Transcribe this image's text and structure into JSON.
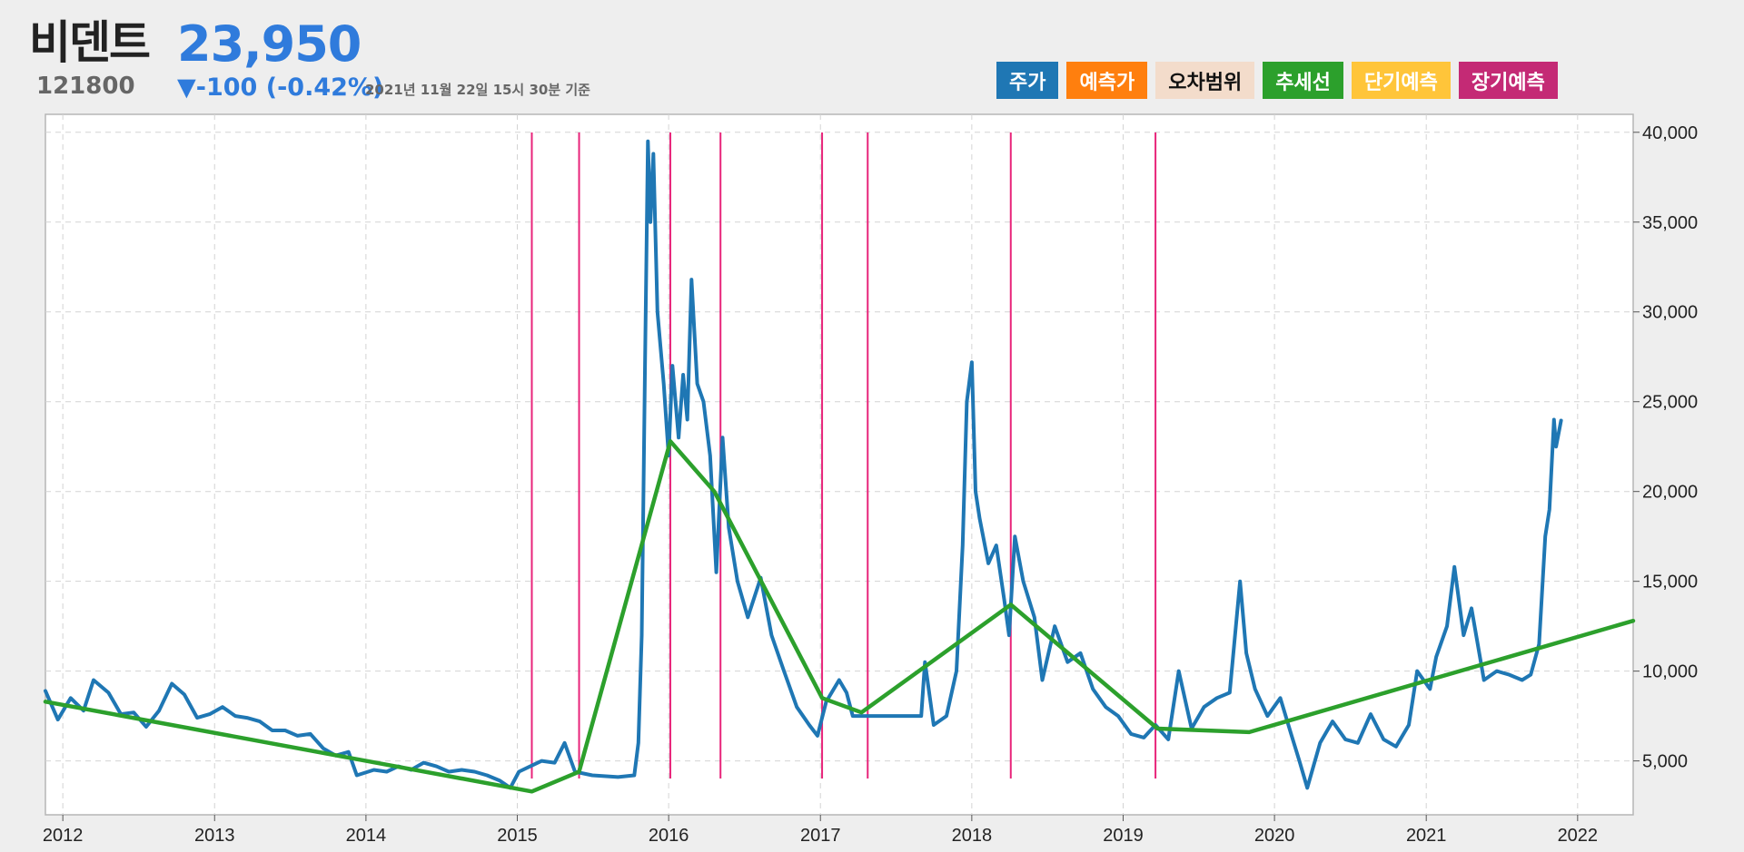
{
  "header": {
    "name": "비덴트",
    "price": "23,950",
    "code": "121800",
    "change": "▼-100 (-0.42%)",
    "timestamp": "2021년 11월 22일 15시 30분 기준"
  },
  "legend": [
    {
      "label": "주가",
      "color": "#1f77b4",
      "text_color": "#ffffff"
    },
    {
      "label": "예측가",
      "color": "#ff7f0e",
      "text_color": "#ffffff"
    },
    {
      "label": "오차범위",
      "color": "#f3dccb",
      "text_color": "#111111"
    },
    {
      "label": "추세선",
      "color": "#2ca02c",
      "text_color": "#ffffff"
    },
    {
      "label": "단기예측",
      "color": "#ffc53a",
      "text_color": "#ffffff"
    },
    {
      "label": "장기예측",
      "color": "#c42a75",
      "text_color": "#ffffff"
    }
  ],
  "chart_data": {
    "type": "line",
    "x_type": "date",
    "xlim": [
      "2011-11-20",
      "2022-05-15"
    ],
    "ylim": [
      2000,
      41000
    ],
    "x_ticks": [
      {
        "value": "2012-01-01",
        "label": "2012"
      },
      {
        "value": "2013-01-01",
        "label": "2013"
      },
      {
        "value": "2014-01-01",
        "label": "2014"
      },
      {
        "value": "2015-01-01",
        "label": "2015"
      },
      {
        "value": "2016-01-01",
        "label": "2016"
      },
      {
        "value": "2017-01-01",
        "label": "2017"
      },
      {
        "value": "2018-01-01",
        "label": "2018"
      },
      {
        "value": "2019-01-01",
        "label": "2019"
      },
      {
        "value": "2020-01-01",
        "label": "2020"
      },
      {
        "value": "2021-01-01",
        "label": "2021"
      },
      {
        "value": "2022-01-01",
        "label": "2022"
      }
    ],
    "y_ticks": [
      {
        "value": 5000,
        "label": "5,000"
      },
      {
        "value": 10000,
        "label": "10,000"
      },
      {
        "value": 15000,
        "label": "15,000"
      },
      {
        "value": 20000,
        "label": "20,000"
      },
      {
        "value": 25000,
        "label": "25,000"
      },
      {
        "value": 30000,
        "label": "30,000"
      },
      {
        "value": 35000,
        "label": "35,000"
      },
      {
        "value": 40000,
        "label": "40,000"
      }
    ],
    "grid": true,
    "y_axis_side": "right",
    "series": [
      {
        "name": "주가",
        "color": "#1f77b4",
        "points": [
          [
            "2011-11-20",
            8900
          ],
          [
            "2011-12-20",
            7300
          ],
          [
            "2012-01-20",
            8500
          ],
          [
            "2012-02-20",
            7800
          ],
          [
            "2012-03-15",
            9500
          ],
          [
            "2012-04-20",
            8800
          ],
          [
            "2012-05-20",
            7600
          ],
          [
            "2012-06-20",
            7700
          ],
          [
            "2012-07-20",
            6900
          ],
          [
            "2012-08-20",
            7800
          ],
          [
            "2012-09-20",
            9300
          ],
          [
            "2012-10-20",
            8700
          ],
          [
            "2012-11-20",
            7400
          ],
          [
            "2012-12-20",
            7600
          ],
          [
            "2013-01-20",
            8000
          ],
          [
            "2013-02-20",
            7500
          ],
          [
            "2013-03-20",
            7400
          ],
          [
            "2013-04-20",
            7200
          ],
          [
            "2013-05-20",
            6700
          ],
          [
            "2013-06-20",
            6700
          ],
          [
            "2013-07-20",
            6400
          ],
          [
            "2013-08-20",
            6500
          ],
          [
            "2013-09-20",
            5700
          ],
          [
            "2013-10-20",
            5300
          ],
          [
            "2013-11-20",
            5500
          ],
          [
            "2013-12-10",
            4200
          ],
          [
            "2014-01-20",
            4500
          ],
          [
            "2014-02-20",
            4400
          ],
          [
            "2014-03-20",
            4700
          ],
          [
            "2014-04-20",
            4500
          ],
          [
            "2014-05-20",
            4900
          ],
          [
            "2014-06-20",
            4700
          ],
          [
            "2014-07-20",
            4400
          ],
          [
            "2014-08-20",
            4500
          ],
          [
            "2014-09-20",
            4400
          ],
          [
            "2014-10-20",
            4200
          ],
          [
            "2014-11-20",
            3900
          ],
          [
            "2014-12-15",
            3500
          ],
          [
            "2015-01-05",
            4400
          ],
          [
            "2015-02-01",
            4700
          ],
          [
            "2015-03-01",
            5000
          ],
          [
            "2015-04-01",
            4900
          ],
          [
            "2015-04-25",
            6000
          ],
          [
            "2015-05-20",
            4400
          ],
          [
            "2015-07-01",
            4200
          ],
          [
            "2015-09-01",
            4100
          ],
          [
            "2015-10-10",
            4200
          ],
          [
            "2015-10-20",
            6000
          ],
          [
            "2015-10-28",
            12000
          ],
          [
            "2015-11-05",
            27000
          ],
          [
            "2015-11-12",
            39500
          ],
          [
            "2015-11-18",
            35000
          ],
          [
            "2015-11-25",
            38800
          ],
          [
            "2015-12-05",
            30000
          ],
          [
            "2015-12-20",
            26000
          ],
          [
            "2016-01-01",
            22000
          ],
          [
            "2016-01-10",
            27000
          ],
          [
            "2016-01-25",
            23000
          ],
          [
            "2016-02-05",
            26500
          ],
          [
            "2016-02-15",
            24000
          ],
          [
            "2016-02-25",
            31800
          ],
          [
            "2016-03-10",
            26000
          ],
          [
            "2016-03-25",
            25000
          ],
          [
            "2016-04-10",
            22000
          ],
          [
            "2016-04-25",
            15500
          ],
          [
            "2016-05-10",
            23000
          ],
          [
            "2016-05-25",
            18000
          ],
          [
            "2016-06-15",
            15000
          ],
          [
            "2016-07-10",
            13000
          ],
          [
            "2016-08-10",
            15200
          ],
          [
            "2016-09-05",
            12000
          ],
          [
            "2016-10-05",
            10000
          ],
          [
            "2016-11-05",
            8000
          ],
          [
            "2016-12-05",
            7000
          ],
          [
            "2016-12-25",
            6400
          ],
          [
            "2017-01-15",
            8300
          ],
          [
            "2017-02-15",
            9500
          ],
          [
            "2017-03-05",
            8800
          ],
          [
            "2017-03-20",
            7500
          ],
          [
            "2017-09-01",
            7500
          ],
          [
            "2017-09-10",
            10500
          ],
          [
            "2017-10-01",
            7000
          ],
          [
            "2017-11-01",
            7500
          ],
          [
            "2017-11-25",
            10000
          ],
          [
            "2017-12-10",
            17000
          ],
          [
            "2017-12-20",
            25000
          ],
          [
            "2018-01-01",
            27200
          ],
          [
            "2018-01-10",
            20000
          ],
          [
            "2018-01-20",
            18500
          ],
          [
            "2018-02-10",
            16000
          ],
          [
            "2018-03-01",
            17000
          ],
          [
            "2018-03-20",
            14000
          ],
          [
            "2018-04-01",
            12000
          ],
          [
            "2018-04-15",
            17500
          ],
          [
            "2018-05-05",
            15000
          ],
          [
            "2018-06-01",
            13000
          ],
          [
            "2018-06-20",
            9500
          ],
          [
            "2018-07-20",
            12500
          ],
          [
            "2018-08-20",
            10500
          ],
          [
            "2018-09-20",
            11000
          ],
          [
            "2018-10-20",
            9000
          ],
          [
            "2018-11-20",
            8000
          ],
          [
            "2018-12-20",
            7500
          ],
          [
            "2019-01-20",
            6500
          ],
          [
            "2019-02-20",
            6300
          ],
          [
            "2019-03-20",
            7000
          ],
          [
            "2019-04-20",
            6200
          ],
          [
            "2019-05-15",
            10000
          ],
          [
            "2019-06-15",
            6800
          ],
          [
            "2019-07-15",
            8000
          ],
          [
            "2019-08-15",
            8500
          ],
          [
            "2019-09-15",
            8800
          ],
          [
            "2019-10-10",
            15000
          ],
          [
            "2019-10-25",
            11000
          ],
          [
            "2019-11-15",
            9000
          ],
          [
            "2019-12-15",
            7500
          ],
          [
            "2020-01-15",
            8500
          ],
          [
            "2020-02-10",
            6500
          ],
          [
            "2020-03-01",
            5000
          ],
          [
            "2020-03-20",
            3500
          ],
          [
            "2020-04-20",
            6000
          ],
          [
            "2020-05-20",
            7200
          ],
          [
            "2020-06-20",
            6200
          ],
          [
            "2020-07-20",
            6000
          ],
          [
            "2020-08-20",
            7600
          ],
          [
            "2020-09-20",
            6200
          ],
          [
            "2020-10-20",
            5800
          ],
          [
            "2020-11-20",
            7000
          ],
          [
            "2020-12-10",
            10000
          ],
          [
            "2021-01-10",
            9000
          ],
          [
            "2021-01-25",
            10800
          ],
          [
            "2021-02-20",
            12500
          ],
          [
            "2021-03-10",
            15800
          ],
          [
            "2021-04-01",
            12000
          ],
          [
            "2021-04-20",
            13500
          ],
          [
            "2021-05-20",
            9500
          ],
          [
            "2021-06-20",
            10000
          ],
          [
            "2021-07-20",
            9800
          ],
          [
            "2021-08-20",
            9500
          ],
          [
            "2021-09-10",
            9800
          ],
          [
            "2021-09-30",
            11500
          ],
          [
            "2021-10-15",
            17500
          ],
          [
            "2021-10-25",
            19000
          ],
          [
            "2021-11-05",
            24000
          ],
          [
            "2021-11-10",
            22500
          ],
          [
            "2021-11-22",
            23950
          ]
        ]
      },
      {
        "name": "추세선",
        "color": "#2ca02c",
        "points": [
          [
            "2011-11-20",
            8300
          ],
          [
            "2015-02-05",
            3300
          ],
          [
            "2015-05-30",
            4400
          ],
          [
            "2016-01-05",
            22800
          ],
          [
            "2016-04-20",
            20000
          ],
          [
            "2017-01-05",
            8500
          ],
          [
            "2017-04-10",
            7700
          ],
          [
            "2018-04-05",
            13700
          ],
          [
            "2019-03-25",
            6800
          ],
          [
            "2019-11-01",
            6600
          ],
          [
            "2022-05-15",
            12800
          ]
        ]
      }
    ],
    "vertical_lines": {
      "color": "#e8247a",
      "dates": [
        "2015-02-05",
        "2015-05-30",
        "2016-01-05",
        "2016-05-05",
        "2017-01-05",
        "2017-04-25",
        "2018-04-05",
        "2019-03-20"
      ]
    }
  }
}
